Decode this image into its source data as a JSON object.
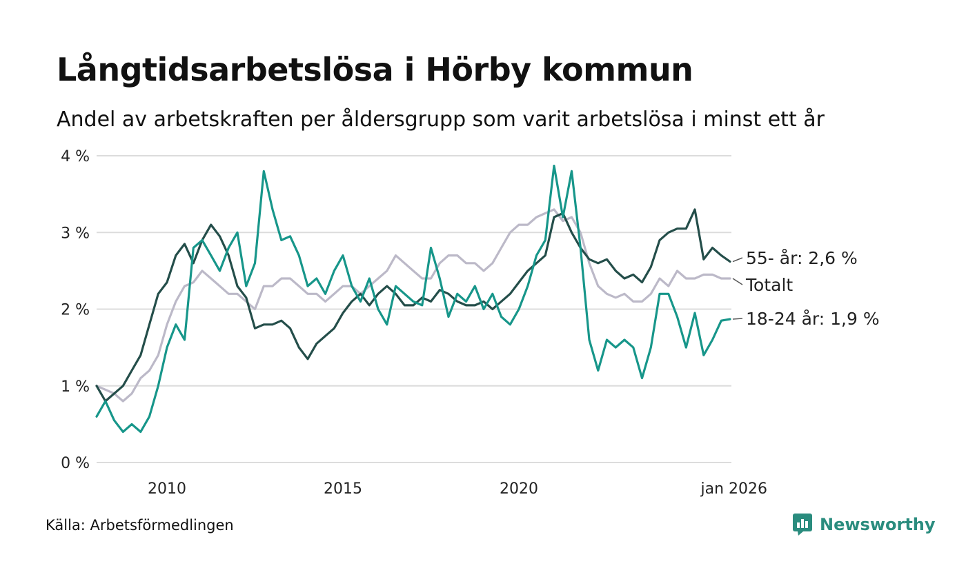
{
  "header": {
    "title": "Långtidsarbetslösa i Hörby kommun",
    "subtitle": "Andel av arbetskraften per åldersgrupp som varit arbetslösa i minst ett år"
  },
  "footer": {
    "source": "Källa: Arbetsförmedlingen",
    "brand": "Newsworthy"
  },
  "colors": {
    "age_55": "#244e4a",
    "total": "#bcb9c8",
    "age_18_24": "#17968a",
    "grid": "#dcdcdc"
  },
  "chart_data": {
    "type": "line",
    "title": "Långtidsarbetslösa i Hörby kommun",
    "subtitle": "Andel av arbetskraften per åldersgrupp som varit arbetslösa i minst ett år",
    "xlabel": "",
    "ylabel": "",
    "x_range": [
      2008.0,
      2026.0
    ],
    "ylim": [
      0,
      4
    ],
    "y_ticks": [
      {
        "value": 0,
        "label": "0 %"
      },
      {
        "value": 1,
        "label": "1 %"
      },
      {
        "value": 2,
        "label": "2 %"
      },
      {
        "value": 3,
        "label": "3 %"
      },
      {
        "value": 4,
        "label": "4 %"
      }
    ],
    "x_ticks": [
      {
        "value": 2010.0,
        "label": "2010"
      },
      {
        "value": 2015.0,
        "label": "2015"
      },
      {
        "value": 2020.0,
        "label": "2020"
      },
      {
        "value": 2026.0,
        "label": "jan 2026"
      }
    ],
    "grid": true,
    "series": [
      {
        "name": "Totalt",
        "label": "Totalt",
        "color_key": "total",
        "points": [
          [
            2008.0,
            1.0
          ],
          [
            2008.5,
            0.9
          ],
          [
            2008.75,
            0.8
          ],
          [
            2009.0,
            0.9
          ],
          [
            2009.25,
            1.1
          ],
          [
            2009.5,
            1.2
          ],
          [
            2009.75,
            1.4
          ],
          [
            2010.0,
            1.8
          ],
          [
            2010.25,
            2.1
          ],
          [
            2010.5,
            2.3
          ],
          [
            2010.75,
            2.35
          ],
          [
            2011.0,
            2.5
          ],
          [
            2011.25,
            2.4
          ],
          [
            2011.5,
            2.3
          ],
          [
            2011.75,
            2.2
          ],
          [
            2012.0,
            2.2
          ],
          [
            2012.25,
            2.1
          ],
          [
            2012.5,
            2.0
          ],
          [
            2012.75,
            2.3
          ],
          [
            2013.0,
            2.3
          ],
          [
            2013.25,
            2.4
          ],
          [
            2013.5,
            2.4
          ],
          [
            2013.75,
            2.3
          ],
          [
            2014.0,
            2.2
          ],
          [
            2014.25,
            2.2
          ],
          [
            2014.5,
            2.1
          ],
          [
            2014.75,
            2.2
          ],
          [
            2015.0,
            2.3
          ],
          [
            2015.25,
            2.3
          ],
          [
            2015.5,
            2.2
          ],
          [
            2015.75,
            2.3
          ],
          [
            2016.0,
            2.4
          ],
          [
            2016.25,
            2.5
          ],
          [
            2016.5,
            2.7
          ],
          [
            2016.75,
            2.6
          ],
          [
            2017.0,
            2.5
          ],
          [
            2017.25,
            2.4
          ],
          [
            2017.5,
            2.4
          ],
          [
            2017.75,
            2.6
          ],
          [
            2018.0,
            2.7
          ],
          [
            2018.25,
            2.7
          ],
          [
            2018.5,
            2.6
          ],
          [
            2018.75,
            2.6
          ],
          [
            2019.0,
            2.5
          ],
          [
            2019.25,
            2.6
          ],
          [
            2019.5,
            2.8
          ],
          [
            2019.75,
            3.0
          ],
          [
            2020.0,
            3.1
          ],
          [
            2020.25,
            3.1
          ],
          [
            2020.5,
            3.2
          ],
          [
            2020.75,
            3.25
          ],
          [
            2021.0,
            3.3
          ],
          [
            2021.25,
            3.15
          ],
          [
            2021.5,
            3.2
          ],
          [
            2021.75,
            3.0
          ],
          [
            2022.0,
            2.6
          ],
          [
            2022.25,
            2.3
          ],
          [
            2022.5,
            2.2
          ],
          [
            2022.75,
            2.15
          ],
          [
            2023.0,
            2.2
          ],
          [
            2023.25,
            2.1
          ],
          [
            2023.5,
            2.1
          ],
          [
            2023.75,
            2.2
          ],
          [
            2024.0,
            2.4
          ],
          [
            2024.25,
            2.3
          ],
          [
            2024.5,
            2.5
          ],
          [
            2024.75,
            2.4
          ],
          [
            2025.0,
            2.4
          ],
          [
            2025.25,
            2.45
          ],
          [
            2025.5,
            2.45
          ],
          [
            2025.75,
            2.4
          ],
          [
            2026.0,
            2.4
          ]
        ]
      },
      {
        "name": "55- år",
        "label": "55- år: 2,6 %",
        "color_key": "age_55",
        "points": [
          [
            2008.0,
            1.0
          ],
          [
            2008.25,
            0.8
          ],
          [
            2008.5,
            0.9
          ],
          [
            2008.75,
            1.0
          ],
          [
            2009.0,
            1.2
          ],
          [
            2009.25,
            1.4
          ],
          [
            2009.5,
            1.8
          ],
          [
            2009.75,
            2.2
          ],
          [
            2010.0,
            2.35
          ],
          [
            2010.25,
            2.7
          ],
          [
            2010.5,
            2.85
          ],
          [
            2010.75,
            2.6
          ],
          [
            2011.0,
            2.9
          ],
          [
            2011.25,
            3.1
          ],
          [
            2011.5,
            2.95
          ],
          [
            2011.75,
            2.7
          ],
          [
            2012.0,
            2.3
          ],
          [
            2012.25,
            2.15
          ],
          [
            2012.5,
            1.75
          ],
          [
            2012.75,
            1.8
          ],
          [
            2013.0,
            1.8
          ],
          [
            2013.25,
            1.85
          ],
          [
            2013.5,
            1.75
          ],
          [
            2013.75,
            1.5
          ],
          [
            2014.0,
            1.35
          ],
          [
            2014.25,
            1.55
          ],
          [
            2014.5,
            1.65
          ],
          [
            2014.75,
            1.75
          ],
          [
            2015.0,
            1.95
          ],
          [
            2015.25,
            2.1
          ],
          [
            2015.5,
            2.2
          ],
          [
            2015.75,
            2.05
          ],
          [
            2016.0,
            2.2
          ],
          [
            2016.25,
            2.3
          ],
          [
            2016.5,
            2.2
          ],
          [
            2016.75,
            2.05
          ],
          [
            2017.0,
            2.05
          ],
          [
            2017.25,
            2.15
          ],
          [
            2017.5,
            2.1
          ],
          [
            2017.75,
            2.25
          ],
          [
            2018.0,
            2.2
          ],
          [
            2018.25,
            2.1
          ],
          [
            2018.5,
            2.05
          ],
          [
            2018.75,
            2.05
          ],
          [
            2019.0,
            2.1
          ],
          [
            2019.25,
            2.0
          ],
          [
            2019.5,
            2.1
          ],
          [
            2019.75,
            2.2
          ],
          [
            2020.0,
            2.35
          ],
          [
            2020.25,
            2.5
          ],
          [
            2020.5,
            2.6
          ],
          [
            2020.75,
            2.7
          ],
          [
            2021.0,
            3.2
          ],
          [
            2021.25,
            3.25
          ],
          [
            2021.5,
            3.0
          ],
          [
            2021.75,
            2.8
          ],
          [
            2022.0,
            2.65
          ],
          [
            2022.25,
            2.6
          ],
          [
            2022.5,
            2.65
          ],
          [
            2022.75,
            2.5
          ],
          [
            2023.0,
            2.4
          ],
          [
            2023.25,
            2.45
          ],
          [
            2023.5,
            2.35
          ],
          [
            2023.75,
            2.55
          ],
          [
            2024.0,
            2.9
          ],
          [
            2024.25,
            3.0
          ],
          [
            2024.5,
            3.05
          ],
          [
            2024.75,
            3.05
          ],
          [
            2025.0,
            3.3
          ],
          [
            2025.25,
            2.65
          ],
          [
            2025.5,
            2.8
          ],
          [
            2025.75,
            2.7
          ],
          [
            2026.0,
            2.62
          ]
        ]
      },
      {
        "name": "18-24 år",
        "label": "18-24 år: 1,9 %",
        "color_key": "age_18_24",
        "points": [
          [
            2008.0,
            0.6
          ],
          [
            2008.25,
            0.8
          ],
          [
            2008.5,
            0.55
          ],
          [
            2008.75,
            0.4
          ],
          [
            2009.0,
            0.5
          ],
          [
            2009.25,
            0.4
          ],
          [
            2009.5,
            0.6
          ],
          [
            2009.75,
            1.0
          ],
          [
            2010.0,
            1.5
          ],
          [
            2010.25,
            1.8
          ],
          [
            2010.5,
            1.6
          ],
          [
            2010.75,
            2.8
          ],
          [
            2011.0,
            2.9
          ],
          [
            2011.25,
            2.7
          ],
          [
            2011.5,
            2.5
          ],
          [
            2011.75,
            2.8
          ],
          [
            2012.0,
            3.0
          ],
          [
            2012.25,
            2.3
          ],
          [
            2012.5,
            2.6
          ],
          [
            2012.75,
            3.8
          ],
          [
            2013.0,
            3.3
          ],
          [
            2013.25,
            2.9
          ],
          [
            2013.5,
            2.95
          ],
          [
            2013.75,
            2.7
          ],
          [
            2014.0,
            2.3
          ],
          [
            2014.25,
            2.4
          ],
          [
            2014.5,
            2.2
          ],
          [
            2014.75,
            2.5
          ],
          [
            2015.0,
            2.7
          ],
          [
            2015.25,
            2.3
          ],
          [
            2015.5,
            2.1
          ],
          [
            2015.75,
            2.4
          ],
          [
            2016.0,
            2.0
          ],
          [
            2016.25,
            1.8
          ],
          [
            2016.5,
            2.3
          ],
          [
            2016.75,
            2.2
          ],
          [
            2017.0,
            2.1
          ],
          [
            2017.25,
            2.05
          ],
          [
            2017.5,
            2.8
          ],
          [
            2017.75,
            2.4
          ],
          [
            2018.0,
            1.9
          ],
          [
            2018.25,
            2.2
          ],
          [
            2018.5,
            2.1
          ],
          [
            2018.75,
            2.3
          ],
          [
            2019.0,
            2.0
          ],
          [
            2019.25,
            2.2
          ],
          [
            2019.5,
            1.9
          ],
          [
            2019.75,
            1.8
          ],
          [
            2020.0,
            2.0
          ],
          [
            2020.25,
            2.3
          ],
          [
            2020.5,
            2.7
          ],
          [
            2020.75,
            2.9
          ],
          [
            2021.0,
            3.87
          ],
          [
            2021.25,
            3.2
          ],
          [
            2021.5,
            3.8
          ],
          [
            2021.75,
            2.8
          ],
          [
            2022.0,
            1.6
          ],
          [
            2022.25,
            1.2
          ],
          [
            2022.5,
            1.6
          ],
          [
            2022.75,
            1.5
          ],
          [
            2023.0,
            1.6
          ],
          [
            2023.25,
            1.5
          ],
          [
            2023.5,
            1.1
          ],
          [
            2023.75,
            1.5
          ],
          [
            2024.0,
            2.2
          ],
          [
            2024.25,
            2.2
          ],
          [
            2024.5,
            1.9
          ],
          [
            2024.75,
            1.5
          ],
          [
            2025.0,
            1.95
          ],
          [
            2025.25,
            1.4
          ],
          [
            2025.5,
            1.6
          ],
          [
            2025.75,
            1.85
          ],
          [
            2026.0,
            1.87
          ]
        ]
      }
    ]
  }
}
